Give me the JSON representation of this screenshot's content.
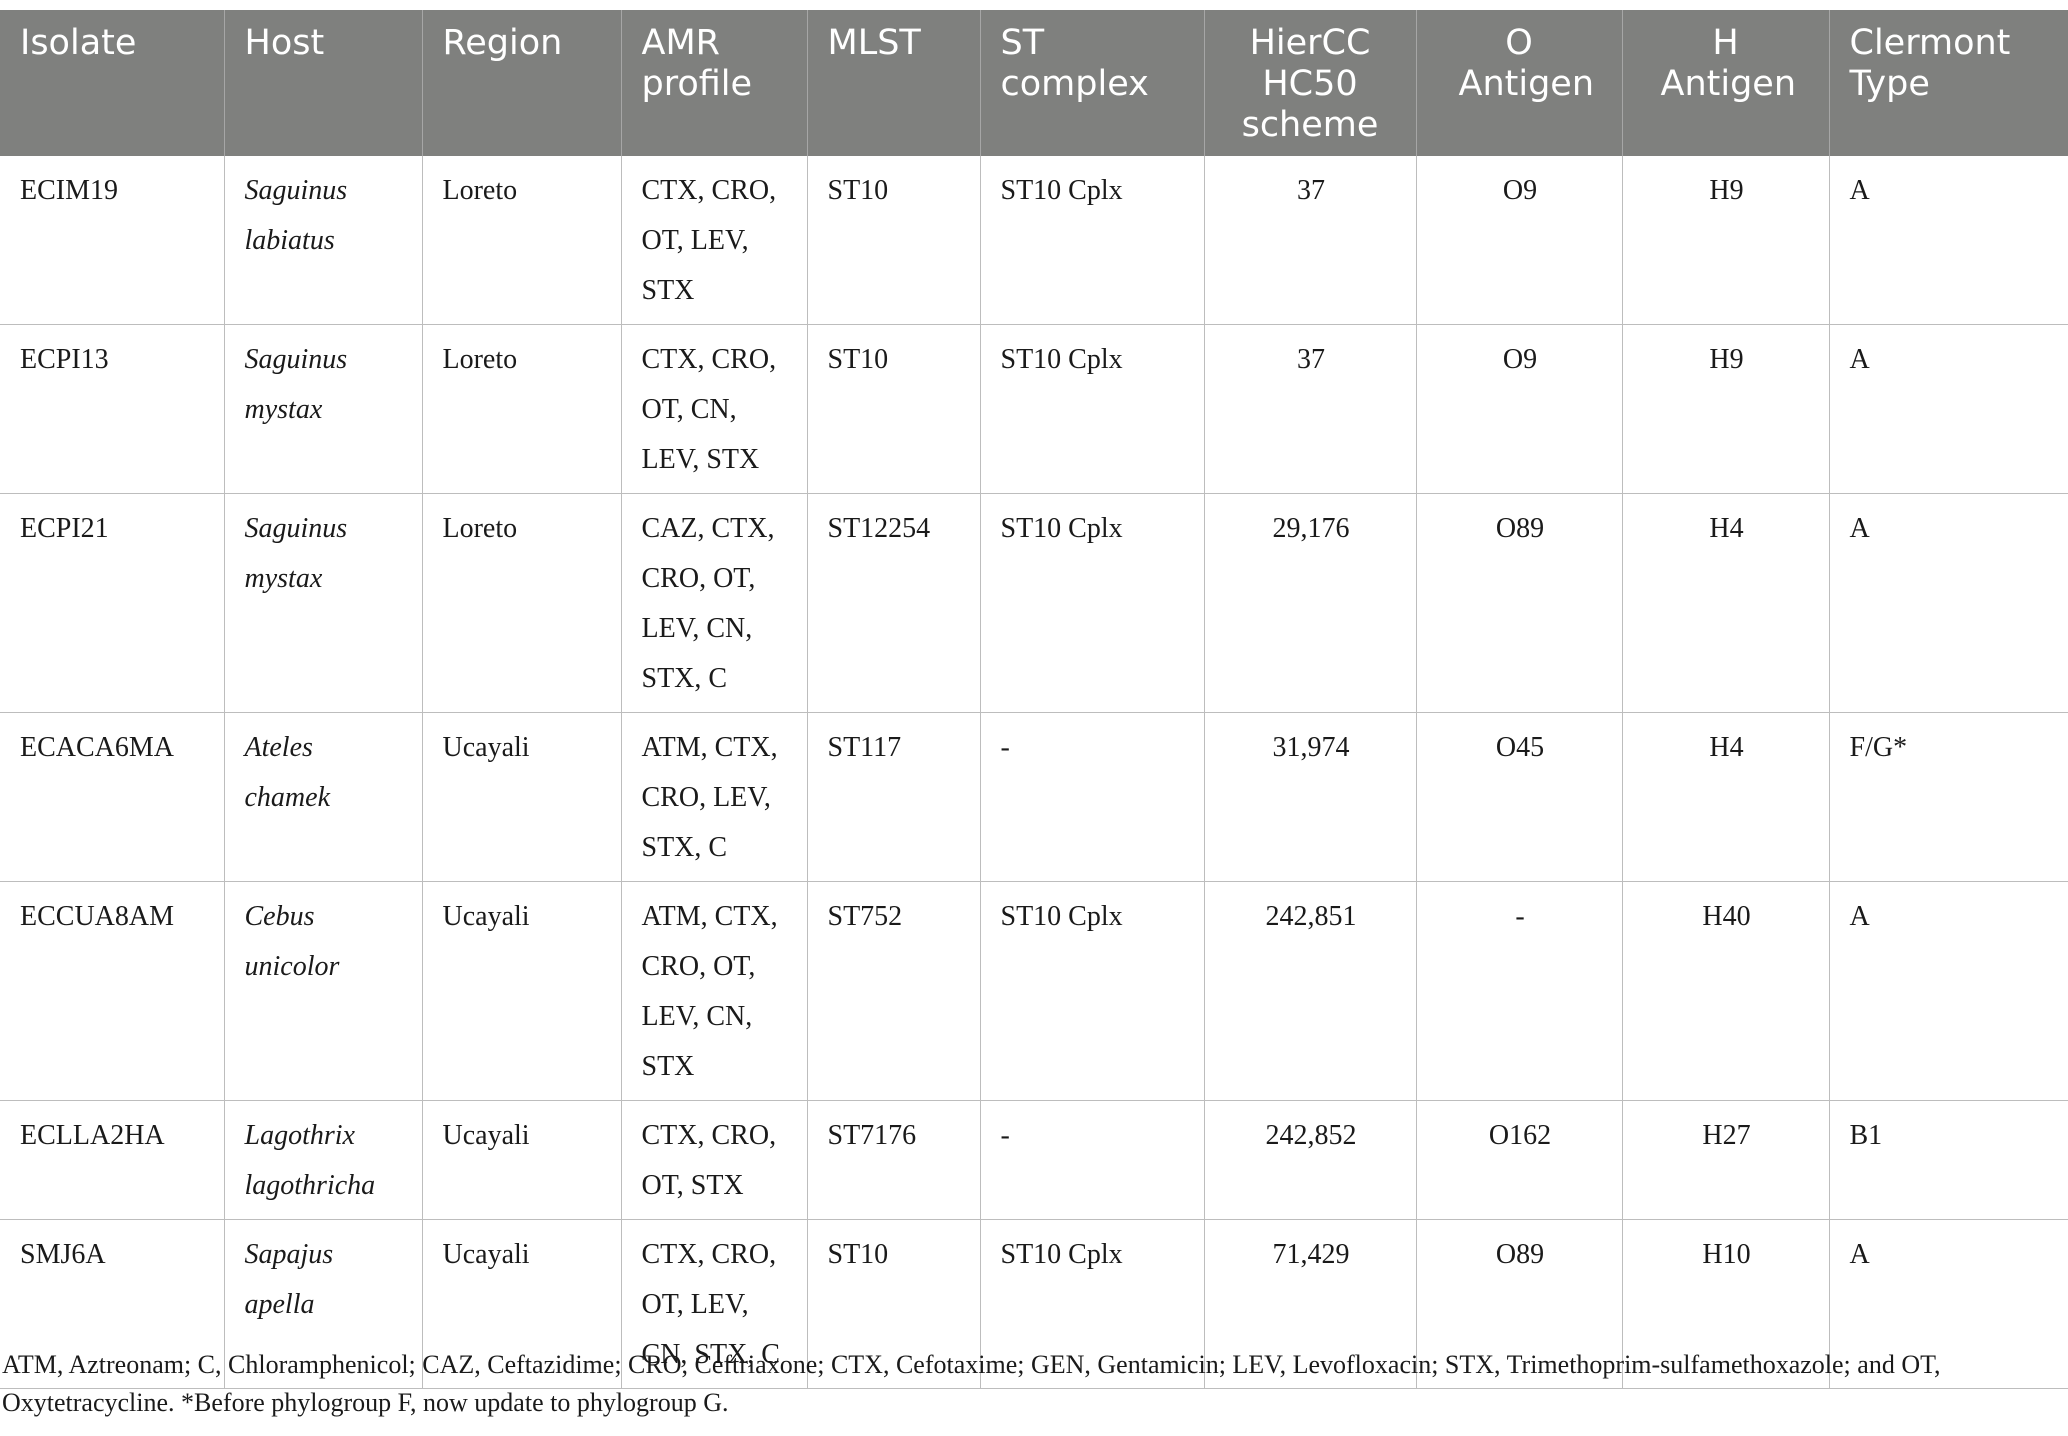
{
  "columns": [
    "Isolate",
    "Host",
    "Region",
    "AMR profile",
    "MLST",
    "ST complex",
    "HierCC HC50 scheme",
    "O Antigen",
    "H Antigen",
    "Clermont Type"
  ],
  "rows": [
    {
      "isolate": "ECIM19",
      "host": "Saguinus labiatus",
      "region": "Loreto",
      "amr": "CTX, CRO, OT, LEV, STX",
      "mlst": "ST10",
      "st_complex": "ST10 Cplx",
      "hiercc": "37",
      "o_antigen": "O9",
      "h_antigen": "H9",
      "clermont": "A"
    },
    {
      "isolate": "ECPI13",
      "host": "Saguinus mystax",
      "region": "Loreto",
      "amr": "CTX, CRO, OT, CN, LEV, STX",
      "mlst": "ST10",
      "st_complex": "ST10 Cplx",
      "hiercc": "37",
      "o_antigen": "O9",
      "h_antigen": "H9",
      "clermont": "A"
    },
    {
      "isolate": "ECPI21",
      "host": "Saguinus mystax",
      "region": "Loreto",
      "amr": "CAZ, CTX, CRO, OT, LEV, CN, STX, C",
      "mlst": "ST12254",
      "st_complex": "ST10 Cplx",
      "hiercc": "29,176",
      "o_antigen": "O89",
      "h_antigen": "H4",
      "clermont": "A"
    },
    {
      "isolate": "ECACA6MA",
      "host": "Ateles chamek",
      "region": "Ucayali",
      "amr": "ATM, CTX, CRO, LEV, STX, C",
      "mlst": "ST117",
      "st_complex": "-",
      "hiercc": "31,974",
      "o_antigen": "O45",
      "h_antigen": "H4",
      "clermont": "F/G*"
    },
    {
      "isolate": "ECCUA8AM",
      "host": "Cebus unicolor",
      "region": "Ucayali",
      "amr": "ATM, CTX, CRO, OT, LEV, CN, STX",
      "mlst": "ST752",
      "st_complex": "ST10 Cplx",
      "hiercc": "242,851",
      "o_antigen": "-",
      "h_antigen": "H40",
      "clermont": "A"
    },
    {
      "isolate": "ECLLA2HA",
      "host": "Lagothrix lagothricha",
      "region": "Ucayali",
      "amr": "CTX, CRO, OT, STX",
      "mlst": "ST7176",
      "st_complex": "-",
      "hiercc": "242,852",
      "o_antigen": "O162",
      "h_antigen": "H27",
      "clermont": "B1"
    },
    {
      "isolate": "SMJ6A",
      "host": "Sapajus apella",
      "region": "Ucayali",
      "amr": "CTX, CRO, OT, LEV, CN, STX, C",
      "mlst": "ST10",
      "st_complex": "ST10 Cplx",
      "hiercc": "71,429",
      "o_antigen": "O89",
      "h_antigen": "H10",
      "clermont": "A"
    }
  ],
  "footnote": "ATM, Aztreonam; C, Chloramphenicol; CAZ, Ceftazidime; CRO, Ceftriaxone; CTX, Cefotaxime; GEN, Gentamicin; LEV, Levofloxacin; STX, Trimethoprim-sulfamethoxazole; and OT, Oxytetracycline. *Before phylogroup F, now update to phylogroup G."
}
